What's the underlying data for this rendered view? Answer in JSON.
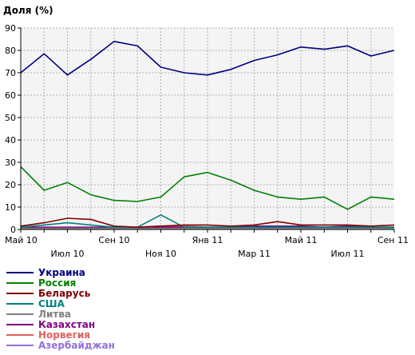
{
  "chart_data": {
    "type": "line",
    "title": "Доля (%)",
    "ylim": [
      0,
      90
    ],
    "yticks": [
      0,
      10,
      20,
      30,
      40,
      50,
      60,
      70,
      80,
      90
    ],
    "grid": true,
    "legend_position": "bottom-left",
    "x": [
      "2010-05",
      "2010-06",
      "2010-07",
      "2010-08",
      "2010-09",
      "2010-10",
      "2010-11",
      "2010-12",
      "2011-01",
      "2011-02",
      "2011-03",
      "2011-04",
      "2011-05",
      "2011-06",
      "2011-07",
      "2011-08",
      "2011-09"
    ],
    "x_tick_labels": [
      "Май 10",
      "Июл 10",
      "Сен 10",
      "Ноя 10",
      "Янв 11",
      "Мар 11",
      "Май 11",
      "Июл 11",
      "Сен 11"
    ],
    "series": [
      {
        "name": "Украина",
        "color": "#000080",
        "values": [
          70,
          78.5,
          69,
          76,
          84,
          82,
          72.5,
          70,
          69,
          71.5,
          75.5,
          78,
          81.5,
          80.5,
          82,
          77.5,
          80
        ]
      },
      {
        "name": "Россия",
        "color": "#008000",
        "values": [
          28,
          17.5,
          21,
          15.5,
          13,
          12.5,
          14.5,
          23.5,
          25.5,
          22,
          17.5,
          14.5,
          13.5,
          14.5,
          9,
          14.5,
          13.5
        ]
      },
      {
        "name": "Беларусь",
        "color": "#800000",
        "values": [
          1.5,
          3,
          5,
          4.5,
          1.5,
          1,
          1.5,
          2,
          2,
          1.5,
          2,
          3.5,
          2,
          2,
          2,
          1.5,
          2
        ]
      },
      {
        "name": "США",
        "color": "#008080",
        "values": [
          1,
          2,
          3,
          2,
          1,
          1,
          6.5,
          1,
          1,
          1,
          1,
          1,
          1,
          1,
          1,
          1,
          1
        ]
      },
      {
        "name": "Литва",
        "color": "#808080",
        "values": [
          0.5,
          0.5,
          0.5,
          0.5,
          0.5,
          0.5,
          0.5,
          0.5,
          0.5,
          0.5,
          0.5,
          0.5,
          0.5,
          0.5,
          0.5,
          0.5,
          0.5
        ]
      },
      {
        "name": "Казахстан",
        "color": "#800080",
        "values": [
          1,
          1,
          1,
          1,
          1,
          1,
          1,
          1,
          1,
          1,
          1.5,
          1.5,
          1.5,
          1,
          1.5,
          1,
          1
        ]
      },
      {
        "name": "Норвегия",
        "color": "#e06060",
        "values": [
          0.5,
          0.5,
          0.5,
          0.5,
          0.5,
          1,
          1.5,
          1.5,
          1,
          1,
          1,
          1,
          1,
          1,
          1,
          1,
          1
        ]
      },
      {
        "name": "Азербайджан",
        "color": "#9370db",
        "values": [
          0.5,
          0.5,
          0.5,
          0.5,
          0.5,
          0.5,
          0.5,
          0.5,
          0.5,
          0.5,
          0.5,
          0.5,
          0.5,
          0.5,
          0.5,
          0.5,
          0.5
        ]
      }
    ]
  }
}
